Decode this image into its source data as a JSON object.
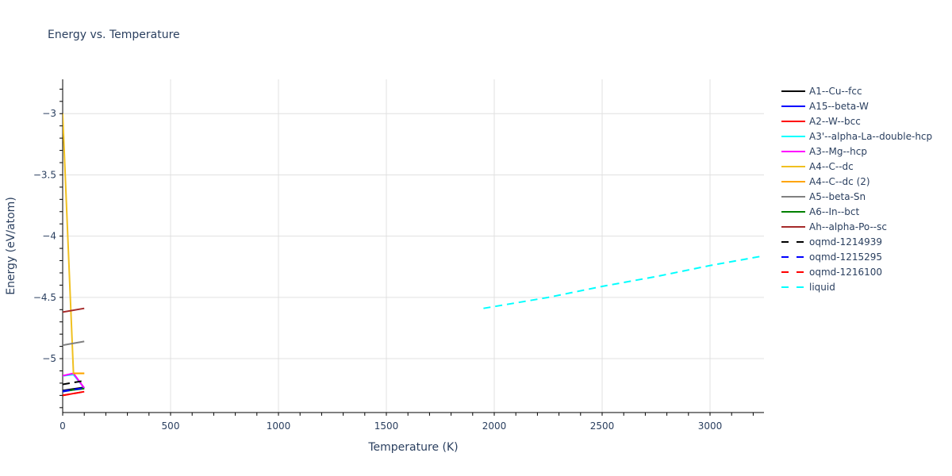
{
  "title": "Energy vs. Temperature",
  "xaxis": {
    "title": "Temperature (K)",
    "ticks": [
      0,
      500,
      1000,
      1500,
      2000,
      2500,
      3000
    ],
    "tick_labels": [
      "0",
      "500",
      "1000",
      "1500",
      "2000",
      "2500",
      "3000"
    ],
    "range": [
      0,
      3250
    ]
  },
  "yaxis": {
    "title": "Energy (eV/atom)",
    "ticks": [
      -3,
      -3.5,
      -4,
      -4.5,
      -5
    ],
    "tick_labels": [
      "−3",
      "−3.5",
      "−4",
      "−4.5",
      "−5"
    ],
    "range": [
      -5.44,
      -2.72
    ]
  },
  "legend": [
    {
      "label": "A1--Cu--fcc",
      "color": "#000000",
      "dash": false
    },
    {
      "label": "A15--beta-W",
      "color": "#0000ff",
      "dash": false
    },
    {
      "label": "A2--W--bcc",
      "color": "#ff0000",
      "dash": false
    },
    {
      "label": "A3'--alpha-La--double-hcp",
      "color": "#00ffff",
      "dash": false
    },
    {
      "label": "A3--Mg--hcp",
      "color": "#ff00ff",
      "dash": false
    },
    {
      "label": "A4--C--dc",
      "color": "#f0c020",
      "dash": false
    },
    {
      "label": "A4--C--dc (2)",
      "color": "#ffa500",
      "dash": false
    },
    {
      "label": "A5--beta-Sn",
      "color": "#808080",
      "dash": false
    },
    {
      "label": "A6--In--bct",
      "color": "#008000",
      "dash": false
    },
    {
      "label": "Ah--alpha-Po--sc",
      "color": "#a52a2a",
      "dash": false
    },
    {
      "label": "oqmd-1214939",
      "color": "#000000",
      "dash": true
    },
    {
      "label": "oqmd-1215295",
      "color": "#0000ff",
      "dash": true
    },
    {
      "label": "oqmd-1216100",
      "color": "#ff0000",
      "dash": true
    },
    {
      "label": "liquid",
      "color": "#00ffff",
      "dash": true
    }
  ],
  "chart_data": {
    "type": "line",
    "title": "Energy vs. Temperature",
    "xlabel": "Temperature (K)",
    "ylabel": "Energy (eV/atom)",
    "xlim": [
      0,
      3250
    ],
    "ylim": [
      -5.44,
      -2.72
    ],
    "grid": true,
    "legend_position": "right",
    "series": [
      {
        "name": "A1--Cu--fcc",
        "color": "#000000",
        "dash": false,
        "x": [
          0,
          100
        ],
        "y": [
          -5.26,
          -5.235
        ]
      },
      {
        "name": "A15--beta-W",
        "color": "#0000ff",
        "dash": false,
        "x": [
          0,
          100
        ],
        "y": [
          -5.27,
          -5.24
        ]
      },
      {
        "name": "A2--W--bcc",
        "color": "#ff0000",
        "dash": false,
        "x": [
          0,
          100
        ],
        "y": [
          -5.3,
          -5.27
        ]
      },
      {
        "name": "A3'--alpha-La--double-hcp",
        "color": "#00ffff",
        "dash": false,
        "x": [
          0,
          50,
          100
        ],
        "y": [
          -5.14,
          -5.13,
          -5.24
        ]
      },
      {
        "name": "A3--Mg--hcp",
        "color": "#ff00ff",
        "dash": false,
        "x": [
          0,
          50,
          100
        ],
        "y": [
          -5.14,
          -5.12,
          -5.24
        ]
      },
      {
        "name": "A4--C--dc",
        "color": "#f0c020",
        "dash": false,
        "x": [
          0,
          50,
          100
        ],
        "y": [
          -3.0,
          -5.12,
          -5.12
        ]
      },
      {
        "name": "A4--C--dc (2)",
        "color": "#ffa500",
        "dash": false,
        "x": [
          50,
          100
        ],
        "y": [
          -5.12,
          -5.12
        ]
      },
      {
        "name": "A5--beta-Sn",
        "color": "#808080",
        "dash": false,
        "x": [
          0,
          100
        ],
        "y": [
          -4.89,
          -4.86
        ]
      },
      {
        "name": "A6--In--bct",
        "color": "#008000",
        "dash": false,
        "x": [
          0,
          100
        ],
        "y": [
          -5.265,
          -5.245
        ]
      },
      {
        "name": "Ah--alpha-Po--sc",
        "color": "#a52a2a",
        "dash": false,
        "x": [
          0,
          100
        ],
        "y": [
          -4.62,
          -4.59
        ]
      },
      {
        "name": "oqmd-1214939",
        "color": "#000000",
        "dash": true,
        "x": [
          0,
          100
        ],
        "y": [
          -5.21,
          -5.18
        ]
      },
      {
        "name": "oqmd-1215295",
        "color": "#0000ff",
        "dash": true,
        "x": [
          0,
          100
        ],
        "y": [
          -5.265,
          -5.24
        ]
      },
      {
        "name": "oqmd-1216100",
        "color": "#ff0000",
        "dash": true,
        "x": [
          0,
          100
        ],
        "y": [
          -5.3,
          -5.27
        ]
      },
      {
        "name": "liquid",
        "color": "#00ffff",
        "dash": true,
        "x": [
          1950,
          2250,
          2500,
          2750,
          3000,
          3250
        ],
        "y": [
          -4.59,
          -4.5,
          -4.41,
          -4.33,
          -4.24,
          -4.16
        ]
      }
    ]
  }
}
